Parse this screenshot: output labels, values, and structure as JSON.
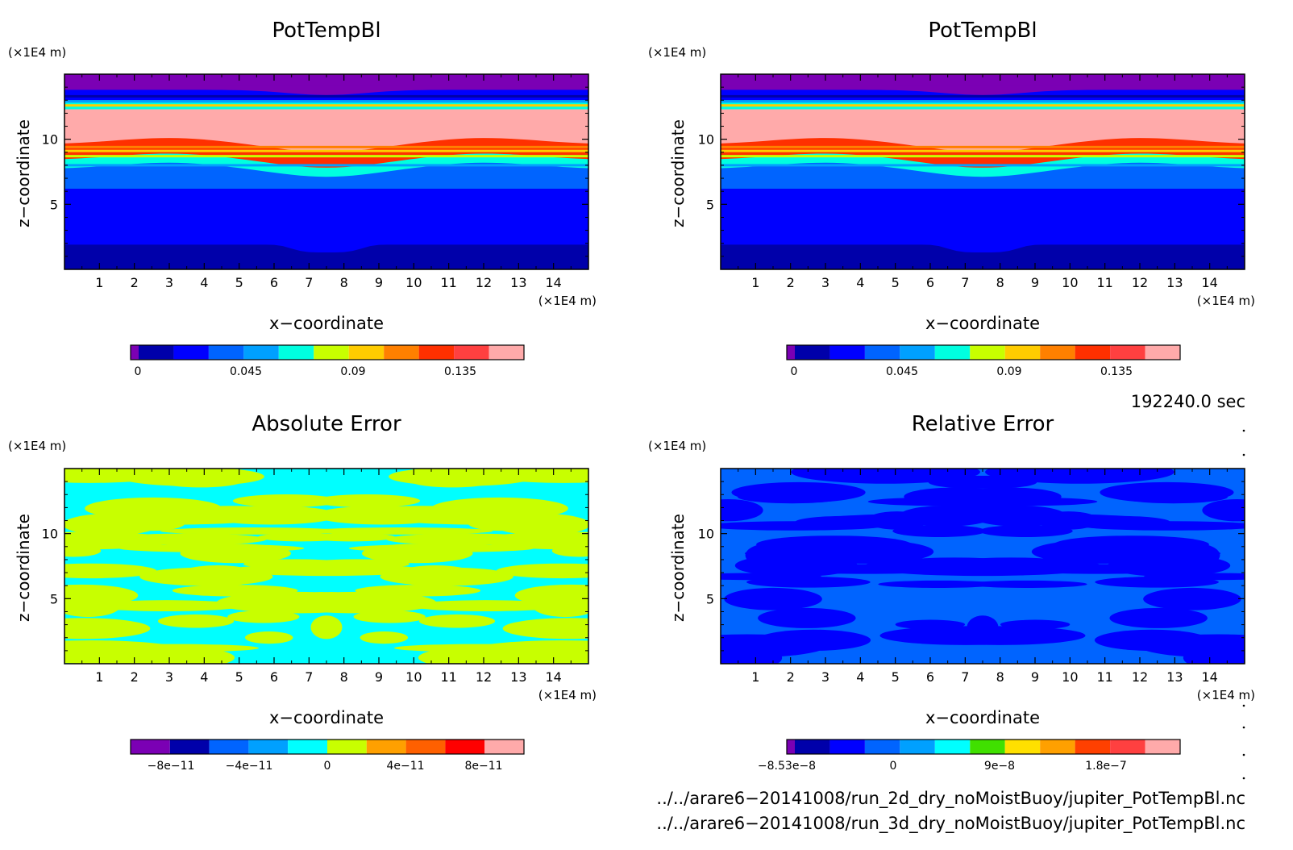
{
  "panels": [
    {
      "title": "PotTempBl",
      "unit_y": "(×1E4 m)",
      "unit_x": "(×1E4 m)",
      "xlabel": "x−coordinate",
      "ylabel": "z−coordinate",
      "colorbar_labels": [
        "0",
        "0.045",
        "0.09",
        "0.135"
      ]
    },
    {
      "title": "PotTempBl",
      "unit_y": "(×1E4 m)",
      "unit_x": "(×1E4 m)",
      "xlabel": "x−coordinate",
      "ylabel": "z−coordinate",
      "colorbar_labels": [
        "0",
        "0.045",
        "0.09",
        "0.135"
      ]
    },
    {
      "title": "Absolute Error",
      "unit_y": "(×1E4 m)",
      "unit_x": "(×1E4 m)",
      "xlabel": "x−coordinate",
      "ylabel": "z−coordinate",
      "colorbar_labels": [
        "−8e−11",
        "−4e−11",
        "0",
        "4e−11",
        "8e−11"
      ]
    },
    {
      "title": "Relative Error",
      "unit_y": "(×1E4 m)",
      "unit_x": "(×1E4 m)",
      "xlabel": "x−coordinate",
      "ylabel": "z−coordinate",
      "colorbar_labels": [
        "−8.53e−8",
        "0",
        "9e−8",
        "1.8e−7"
      ]
    }
  ],
  "time_label": "192240.0 sec",
  "file_paths": [
    "../../arare6−20141008/run_2d_dry_noMoistBuoy/jupiter_PotTempBl.nc",
    "../../arare6−20141008/run_3d_dry_noMoistBuoy/jupiter_PotTempBl.nc"
  ],
  "chart_data": [
    {
      "type": "heatmap",
      "title": "PotTempBl",
      "xlabel": "x−coordinate",
      "ylabel": "z−coordinate",
      "x_unit": "×1E4 m",
      "y_unit": "×1E4 m",
      "xlim": [
        0,
        15
      ],
      "ylim": [
        0,
        15
      ],
      "x_ticks": [
        1,
        2,
        3,
        4,
        5,
        6,
        7,
        8,
        9,
        10,
        11,
        12,
        13,
        14
      ],
      "y_ticks": [
        5,
        10
      ],
      "colorbar": {
        "ticks": [
          0,
          0.045,
          0.09,
          0.135
        ],
        "colors": [
          "#7b00b4",
          "#0000aa",
          "#0000ff",
          "#0064ff",
          "#00a0ff",
          "#00ffe0",
          "#c8ff00",
          "#ffcc00",
          "#ff8000",
          "#ff3000",
          "#ff4040",
          "#ffaaaa"
        ]
      },
      "z_layers": [
        {
          "z_top": 1.9,
          "color": "#0000aa"
        },
        {
          "z_top": 6.2,
          "color": "#0000ff"
        },
        {
          "z_top": 7.7,
          "color": "#0064ff"
        },
        {
          "z_top": 8.4,
          "color": "#00ffe0"
        },
        {
          "z_top": 9.6,
          "color": "#ff3000"
        },
        {
          "z_top": 12.3,
          "color": "#ffaaaa"
        },
        {
          "z_top": 13.0,
          "color": "#00ffe0"
        },
        {
          "z_top": 13.8,
          "color": "#0000ff"
        },
        {
          "z_top": 15.0,
          "color": "#7b00b4"
        }
      ]
    },
    {
      "type": "heatmap",
      "title": "PotTempBl",
      "xlabel": "x−coordinate",
      "ylabel": "z−coordinate",
      "x_unit": "×1E4 m",
      "y_unit": "×1E4 m",
      "xlim": [
        0,
        15
      ],
      "ylim": [
        0,
        15
      ],
      "x_ticks": [
        1,
        2,
        3,
        4,
        5,
        6,
        7,
        8,
        9,
        10,
        11,
        12,
        13,
        14
      ],
      "y_ticks": [
        5,
        10
      ],
      "colorbar": {
        "ticks": [
          0,
          0.045,
          0.09,
          0.135
        ],
        "colors": [
          "#7b00b4",
          "#0000aa",
          "#0000ff",
          "#0064ff",
          "#00a0ff",
          "#00ffe0",
          "#c8ff00",
          "#ffcc00",
          "#ff8000",
          "#ff3000",
          "#ff4040",
          "#ffaaaa"
        ]
      },
      "z_layers": [
        {
          "z_top": 1.9,
          "color": "#0000aa"
        },
        {
          "z_top": 6.2,
          "color": "#0000ff"
        },
        {
          "z_top": 7.7,
          "color": "#0064ff"
        },
        {
          "z_top": 8.4,
          "color": "#00ffe0"
        },
        {
          "z_top": 9.6,
          "color": "#ff3000"
        },
        {
          "z_top": 12.3,
          "color": "#ffaaaa"
        },
        {
          "z_top": 13.0,
          "color": "#00ffe0"
        },
        {
          "z_top": 13.8,
          "color": "#0000ff"
        },
        {
          "z_top": 15.0,
          "color": "#7b00b4"
        }
      ]
    },
    {
      "type": "heatmap",
      "title": "Absolute Error",
      "xlabel": "x−coordinate",
      "ylabel": "z−coordinate",
      "x_unit": "×1E4 m",
      "y_unit": "×1E4 m",
      "xlim": [
        0,
        15
      ],
      "ylim": [
        0,
        15
      ],
      "x_ticks": [
        1,
        2,
        3,
        4,
        5,
        6,
        7,
        8,
        9,
        10,
        11,
        12,
        13,
        14
      ],
      "y_ticks": [
        5,
        10
      ],
      "colorbar": {
        "ticks": [
          -8e-11,
          -4e-11,
          0,
          4e-11,
          8e-11
        ],
        "colors": [
          "#7b00b4",
          "#0000aa",
          "#0064ff",
          "#00a0ff",
          "#00ffff",
          "#c8ff00",
          "#ffa000",
          "#ff6000",
          "#ff0000",
          "#ffaaaa"
        ]
      },
      "dominant_colors": [
        "#00ffff",
        "#c8ff00"
      ]
    },
    {
      "type": "heatmap",
      "title": "Relative Error",
      "xlabel": "x−coordinate",
      "ylabel": "z−coordinate",
      "x_unit": "×1E4 m",
      "y_unit": "×1E4 m",
      "xlim": [
        0,
        15
      ],
      "ylim": [
        0,
        15
      ],
      "x_ticks": [
        1,
        2,
        3,
        4,
        5,
        6,
        7,
        8,
        9,
        10,
        11,
        12,
        13,
        14
      ],
      "y_ticks": [
        5,
        10
      ],
      "colorbar": {
        "ticks": [
          -8.53e-08,
          0,
          9e-08,
          1.8e-07
        ],
        "colors": [
          "#7b00b4",
          "#0000aa",
          "#0000ff",
          "#0064ff",
          "#00a0ff",
          "#00ffff",
          "#40e000",
          "#ffe000",
          "#ffa000",
          "#ff4000",
          "#ff4040",
          "#ffaaaa"
        ]
      },
      "dominant_colors": [
        "#0064ff",
        "#0000ff"
      ]
    }
  ]
}
